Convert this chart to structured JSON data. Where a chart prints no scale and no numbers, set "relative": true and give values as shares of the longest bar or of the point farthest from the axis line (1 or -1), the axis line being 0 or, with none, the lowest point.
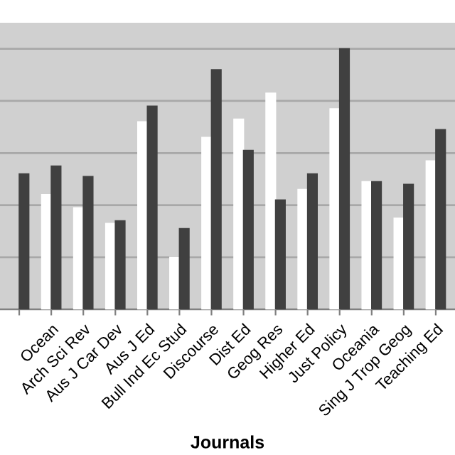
{
  "chart_data": {
    "type": "bar",
    "xlabel": "Journals",
    "relative": true,
    "grid": "y",
    "categories": [
      null,
      "Ocean",
      "Arch Sci Rev",
      "Aus J Car Dev",
      "Aus J Ed",
      "Bull Ind Ec Stud",
      "Discourse",
      "Dist Ed",
      "Geog Res",
      "Higher Ed",
      "Just Policy",
      "Oceania",
      "Sing J Trop Geog",
      "Teaching Ed"
    ],
    "series": [
      {
        "color": "#ffffff",
        "values": [
          null,
          0.44,
          0.39,
          0.33,
          0.72,
          0.2,
          0.66,
          0.73,
          0.83,
          0.46,
          0.77,
          0.49,
          0.35,
          0.57
        ]
      },
      {
        "color": "#404040",
        "values": [
          0.52,
          0.55,
          0.51,
          0.34,
          0.78,
          0.31,
          0.92,
          0.61,
          0.42,
          0.52,
          1,
          0.49,
          0.48,
          0.69
        ]
      }
    ]
  }
}
